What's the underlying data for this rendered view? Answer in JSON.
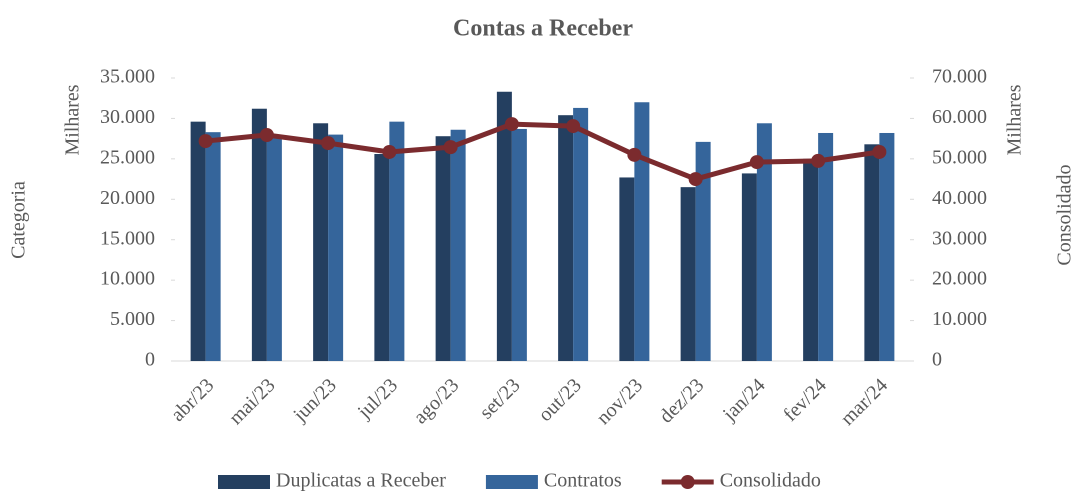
{
  "chart_data": {
    "type": "bar-line",
    "title": "Contas a Receber",
    "y_label": "Milhares",
    "y2_label": "Milhares",
    "x_label": "Categoria",
    "y2_title": "Consolidado",
    "categories": [
      "abr/23",
      "mai/23",
      "jun/23",
      "jul/23",
      "ago/23",
      "set/23",
      "out/23",
      "nov/23",
      "dez/23",
      "jan/24",
      "fev/24",
      "mar/24"
    ],
    "series": [
      {
        "name": "Duplicatas a Receber",
        "color": "#243f60",
        "type": "bar",
        "values": [
          29600,
          31200,
          29400,
          25600,
          27800,
          33300,
          30400,
          22700,
          21500,
          23200,
          25000,
          26800
        ]
      },
      {
        "name": "Contratos",
        "color": "#35659b",
        "type": "bar",
        "values": [
          28300,
          27700,
          28000,
          29600,
          28600,
          28700,
          31300,
          32000,
          27100,
          29400,
          28200,
          28200
        ]
      },
      {
        "name": "Consolidado",
        "color": "#7b2b2e",
        "type": "line",
        "axis": "y2",
        "values": [
          54400,
          55900,
          53900,
          51700,
          52900,
          58600,
          58100,
          51000,
          45000,
          49200,
          49500,
          51700
        ]
      }
    ],
    "ylim": [
      0,
      35000
    ],
    "yticks": [
      0,
      {
        "value": 5000,
        "label": "5.000"
      },
      {
        "value": 10000,
        "label": "10.000"
      },
      {
        "value": 15000,
        "label": "15.000"
      },
      {
        "value": 20000,
        "label": "20.000"
      },
      {
        "value": 25000,
        "label": "25.000"
      },
      {
        "value": 30000,
        "label": "30.000"
      },
      {
        "value": 35000,
        "label": "35.000"
      }
    ],
    "y2lim": [
      0,
      70000
    ],
    "y2ticks": [
      0,
      {
        "value": 10000,
        "label": "10.000"
      },
      {
        "value": 20000,
        "label": "20.000"
      },
      {
        "value": 30000,
        "label": "30.000"
      },
      {
        "value": 40000,
        "label": "40.000"
      },
      {
        "value": 50000,
        "label": "50.000"
      },
      {
        "value": 60000,
        "label": "60.000"
      },
      {
        "value": 70000,
        "label": "70.000"
      }
    ]
  }
}
